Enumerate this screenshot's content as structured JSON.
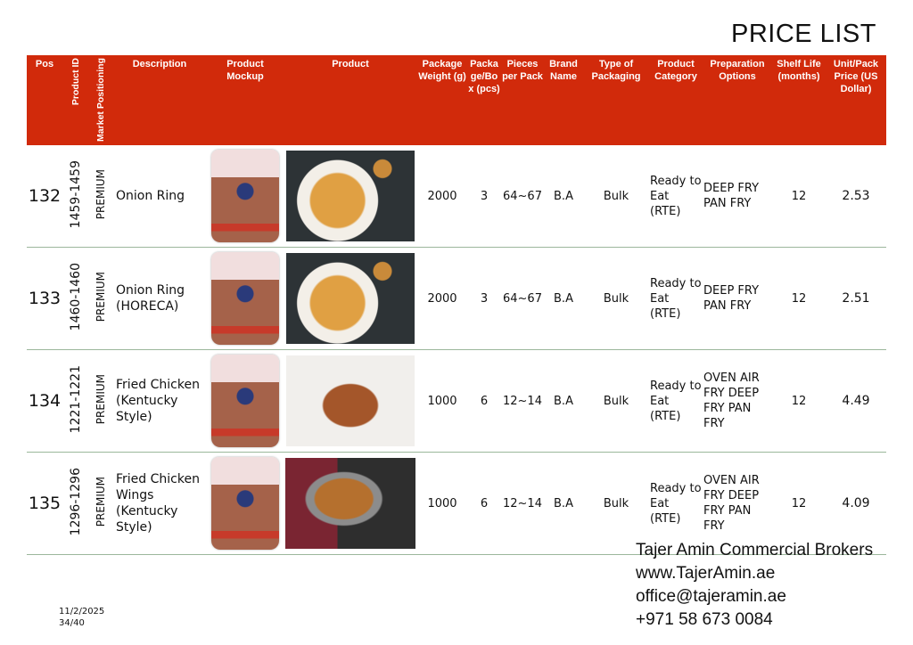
{
  "title": "PRICE LIST",
  "headers": [
    "Pos",
    "Product ID",
    "Market Positioning",
    "Description",
    "Product Mockup",
    "Product",
    "Package Weight (g)",
    "Packa ge/Bo x (pcs)",
    "Pieces per Pack",
    "Brand Name",
    "Type of Packaging",
    "Product Category",
    "Preparation Options",
    "Shelf Life (months)",
    "Unit/Pack Price (US Dollar)"
  ],
  "rows": [
    {
      "pos": "132",
      "id": "1459-1459",
      "market": "PREMIUM",
      "desc": "Onion Ring",
      "weight": "2000",
      "box": "3",
      "pieces": "64~67",
      "brand": "B.A",
      "type": "Bulk",
      "category": "Ready to Eat (RTE)",
      "prep": "DEEP FRY PAN FRY",
      "shelf": "12",
      "price": "2.53"
    },
    {
      "pos": "133",
      "id": "1460-1460",
      "market": "PREMIUM",
      "desc": "Onion Ring (HORECA)",
      "weight": "2000",
      "box": "3",
      "pieces": "64~67",
      "brand": "B.A",
      "type": "Bulk",
      "category": "Ready to Eat (RTE)",
      "prep": "DEEP FRY PAN FRY",
      "shelf": "12",
      "price": "2.51"
    },
    {
      "pos": "134",
      "id": "1221-1221",
      "market": "PREMIUM",
      "desc": "Fried Chicken (Kentucky Style)",
      "weight": "1000",
      "box": "6",
      "pieces": "12~14",
      "brand": "B.A",
      "type": "Bulk",
      "category": "Ready to Eat (RTE)",
      "prep": "OVEN AIR FRY DEEP FRY PAN FRY",
      "shelf": "12",
      "price": "4.49"
    },
    {
      "pos": "135",
      "id": "1296-1296",
      "market": "PREMIUM",
      "desc": "Fried Chicken Wings (Kentucky Style)",
      "weight": "1000",
      "box": "6",
      "pieces": "12~14",
      "brand": "B.A",
      "type": "Bulk",
      "category": "Ready to Eat (RTE)",
      "prep": "OVEN AIR FRY DEEP FRY PAN FRY",
      "shelf": "12",
      "price": "4.09"
    }
  ],
  "footer": {
    "company": "Tajer Amin Commercial Brokers",
    "website": "www.TajerAmin.ae",
    "email": "office@tajeramin.ae",
    "phone": "+971 58 673 0084"
  },
  "date": "11/2/2025",
  "page": "34/40",
  "colors": {
    "header": "#d12a0b",
    "divider": "#9bb79b"
  }
}
